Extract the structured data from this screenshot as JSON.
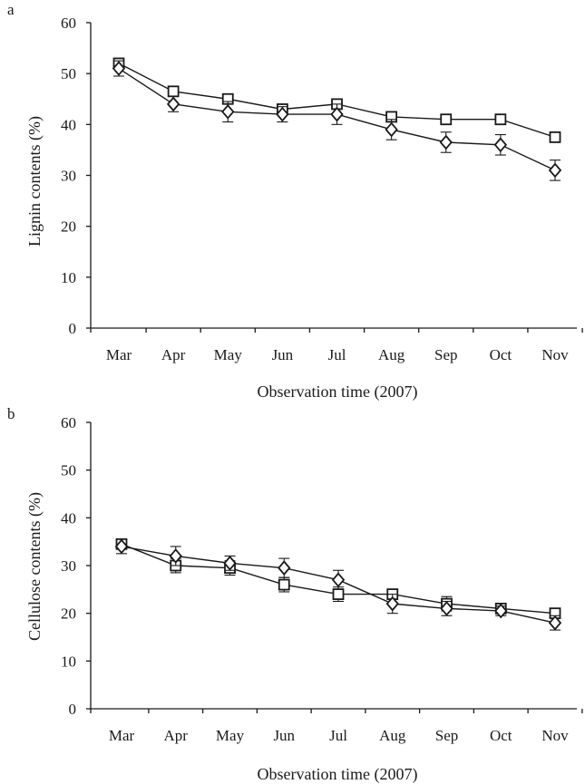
{
  "chart_data": [
    {
      "panel_label": "a",
      "type": "line",
      "xlabel": "Observation time (2007)",
      "ylabel": "Lignin contents (%)",
      "categories": [
        "Mar",
        "Apr",
        "May",
        "Jun",
        "Jul",
        "Aug",
        "Sep",
        "Oct",
        "Nov"
      ],
      "ylim": [
        0,
        60
      ],
      "yticks": [
        "0",
        "10",
        "20",
        "30",
        "40",
        "50",
        "60"
      ],
      "grid": false,
      "series": [
        {
          "marker": "square",
          "values": [
            52,
            46.5,
            45,
            43,
            44,
            41.5,
            41,
            41,
            37.5
          ],
          "errors": [
            1,
            1,
            1,
            1,
            1,
            1,
            1,
            1,
            1
          ]
        },
        {
          "marker": "diamond",
          "values": [
            51,
            44,
            42.5,
            42,
            42,
            39,
            36.5,
            36,
            31
          ],
          "errors": [
            1.5,
            1.5,
            2,
            1.5,
            2,
            2,
            2,
            2,
            2
          ]
        }
      ]
    },
    {
      "panel_label": "b",
      "type": "line",
      "xlabel": "Observation time (2007)",
      "ylabel": "Cellulose contents (%)",
      "categories": [
        "Mar",
        "Apr",
        "May",
        "Jun",
        "Jul",
        "Aug",
        "Sep",
        "Oct",
        "Nov"
      ],
      "ylim": [
        0,
        60
      ],
      "yticks": [
        "0",
        "10",
        "20",
        "30",
        "40",
        "50",
        "60"
      ],
      "grid": false,
      "series": [
        {
          "marker": "square",
          "values": [
            34.5,
            30,
            29.5,
            26,
            24,
            24,
            22,
            21,
            20
          ],
          "errors": [
            1,
            1.5,
            1.5,
            1.5,
            1.5,
            1,
            1.5,
            1,
            1
          ]
        },
        {
          "marker": "diamond",
          "values": [
            34,
            32,
            30.5,
            29.5,
            27,
            22,
            21,
            20.5,
            18
          ],
          "errors": [
            1.5,
            2,
            1.5,
            2,
            2,
            2,
            1.5,
            1,
            1.5
          ]
        }
      ]
    }
  ]
}
